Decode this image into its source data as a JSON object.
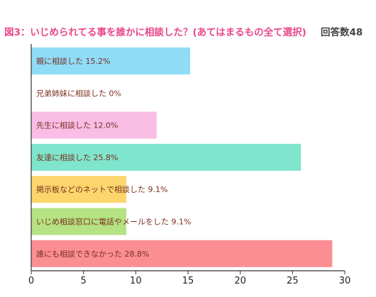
{
  "chart_data": {
    "type": "bar",
    "orientation": "horizontal",
    "title": "図3：いじめられてる事を誰かに相談した？(あてはまるもの全て選択)",
    "respondent_count": "回答数48",
    "categories": [
      "親に相談した",
      "兄弟姉妹に相談した",
      "先生に相談した",
      "友達に相談した",
      "掲示板などのネットで相談した",
      "いじめ相談窓口に電話やメールをした",
      "誰にも相談できなかった"
    ],
    "values": [
      15.2,
      0,
      12.0,
      25.8,
      9.1,
      9.1,
      28.8
    ],
    "data_labels": [
      "親に相談した 15.2%",
      "兄弟姉妹に相談した 0%",
      "先生に相談した 12.0%",
      "友達に相談した 25.8%",
      "掲示板などのネットで相談した 9.1%",
      "いじめ相談窓口に電話やメールをした 9.1%",
      "誰にも相談できなかった 28.8%"
    ],
    "colors": [
      "#8fdcf7",
      "#ffffff",
      "#f9bde6",
      "#7fe5cc",
      "#fcd66c",
      "#b5e282",
      "#fb8e93"
    ],
    "xlim": [
      0,
      30
    ],
    "xticks": [
      0,
      5,
      10,
      15,
      20,
      25,
      30
    ],
    "grid": false,
    "legend": "none"
  }
}
